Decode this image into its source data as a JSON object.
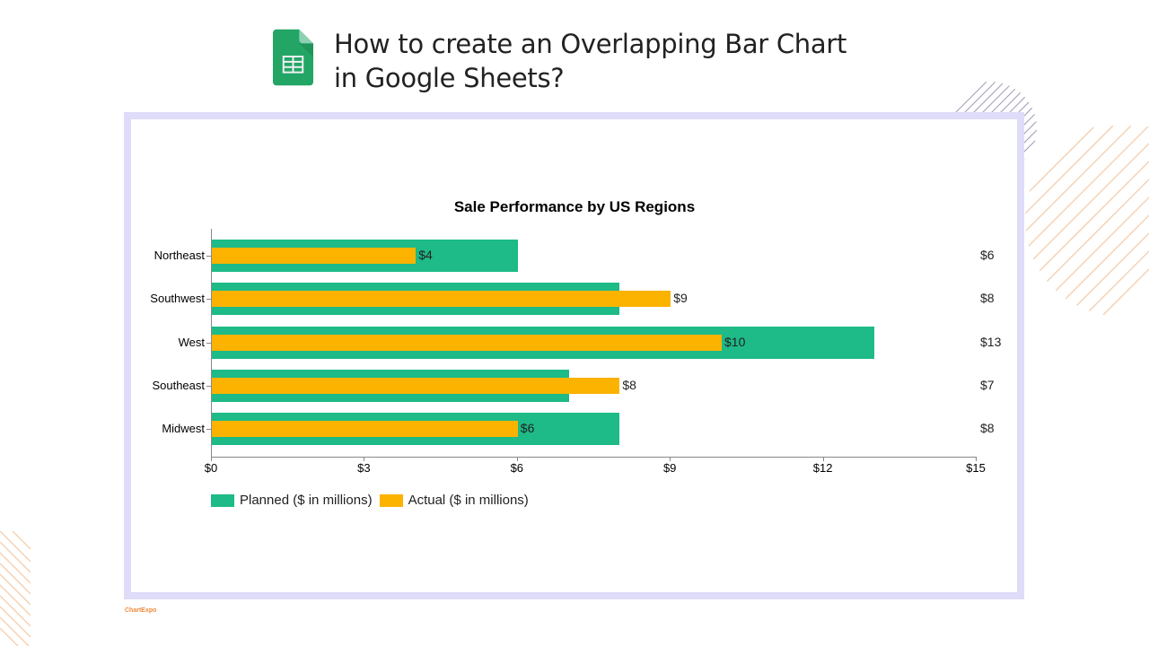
{
  "header": {
    "icon": "google-sheets-icon",
    "title_line1": "How to create an Overlapping Bar Chart",
    "title_line2": "in Google Sheets?"
  },
  "brand": {
    "label": "ChartExpo"
  },
  "colors": {
    "planned": "#1EBA87",
    "actual": "#FBB300",
    "frame": "#DEDCF8",
    "accent_stripes": "#F5D2B4"
  },
  "chart_data": {
    "type": "bar",
    "orientation": "horizontal",
    "title": "Sale Performance by US Regions",
    "categories": [
      "Northeast",
      "Southwest",
      "West",
      "Southeast",
      "Midwest"
    ],
    "series": [
      {
        "name": "Planned ($ in millions)",
        "values": [
          6,
          8,
          13,
          7,
          8
        ],
        "color": "#1EBA87"
      },
      {
        "name": "Actual ($ in millions)",
        "values": [
          4,
          9,
          10,
          8,
          6
        ],
        "color": "#FBB300"
      }
    ],
    "data_labels_actual": [
      "$4",
      "$9",
      "$10",
      "$8",
      "$6"
    ],
    "data_labels_planned": [
      "$6",
      "$8",
      "$13",
      "$7",
      "$8"
    ],
    "xlabel": "",
    "ylabel": "",
    "xlim": [
      0,
      15
    ],
    "xticks": [
      "$0",
      "$3",
      "$6",
      "$9",
      "$12",
      "$15"
    ],
    "grid": false,
    "legend_position": "bottom-left"
  }
}
